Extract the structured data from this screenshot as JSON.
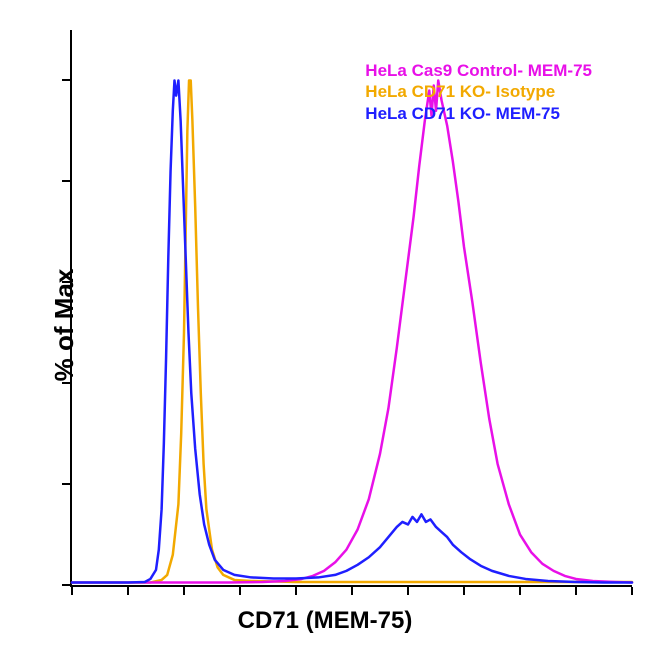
{
  "chart": {
    "type": "histogram",
    "title": "",
    "xlabel": "CD71 (MEM-75)",
    "ylabel": "% of Max",
    "label_fontsize": 24,
    "label_fontweight": "bold",
    "background_color": "#ffffff",
    "axis_color": "#000000",
    "xlim": [
      0,
      100
    ],
    "ylim": [
      0,
      110
    ],
    "x_ticks": [
      0,
      10,
      20,
      30,
      40,
      50,
      60,
      70,
      80,
      90,
      100
    ],
    "y_ticks": [
      0,
      20,
      40,
      60,
      80,
      100
    ],
    "line_width": 2.5,
    "legend": {
      "position": "top-right",
      "fontsize": 17,
      "fontweight": "bold",
      "items": [
        {
          "label": "HeLa Cas9 Control- MEM-75",
          "color": "#e810e8"
        },
        {
          "label": "HeLa CD71  KO- Isotype",
          "color": "#f2a900"
        },
        {
          "label": "HeLa CD71 KO-  MEM-75",
          "color": "#1f1fff"
        }
      ]
    },
    "series": [
      {
        "name": "HeLa CD71 KO- Isotype",
        "color": "#f2a900",
        "points": [
          [
            0,
            0.5
          ],
          [
            5,
            0.5
          ],
          [
            10,
            0.5
          ],
          [
            14,
            0.5
          ],
          [
            16,
            1
          ],
          [
            17,
            2
          ],
          [
            18,
            6
          ],
          [
            19,
            16
          ],
          [
            19.5,
            30
          ],
          [
            20,
            50
          ],
          [
            20.3,
            70
          ],
          [
            20.6,
            90
          ],
          [
            20.9,
            100
          ],
          [
            21.2,
            100
          ],
          [
            21.5,
            92
          ],
          [
            22,
            75
          ],
          [
            22.5,
            55
          ],
          [
            23,
            38
          ],
          [
            23.5,
            24
          ],
          [
            24,
            15
          ],
          [
            25,
            7
          ],
          [
            26,
            3.5
          ],
          [
            27,
            2
          ],
          [
            29,
            1
          ],
          [
            32,
            0.8
          ],
          [
            40,
            0.6
          ],
          [
            50,
            0.6
          ],
          [
            60,
            0.6
          ],
          [
            70,
            0.6
          ],
          [
            80,
            0.6
          ],
          [
            90,
            0.6
          ],
          [
            100,
            0.6
          ]
        ]
      },
      {
        "name": "HeLa Cas9 Control- MEM-75",
        "color": "#e810e8",
        "points": [
          [
            0,
            0.5
          ],
          [
            10,
            0.5
          ],
          [
            20,
            0.5
          ],
          [
            28,
            0.5
          ],
          [
            34,
            0.6
          ],
          [
            38,
            0.8
          ],
          [
            41,
            1.2
          ],
          [
            43,
            1.8
          ],
          [
            45,
            2.8
          ],
          [
            47,
            4.5
          ],
          [
            49,
            7
          ],
          [
            51,
            11
          ],
          [
            53,
            17
          ],
          [
            55,
            26
          ],
          [
            56.5,
            35
          ],
          [
            58,
            47
          ],
          [
            59.5,
            60
          ],
          [
            61,
            73
          ],
          [
            62,
            83
          ],
          [
            63,
            92
          ],
          [
            63.8,
            98
          ],
          [
            64.2,
            93
          ],
          [
            64.6,
            99
          ],
          [
            65,
            94
          ],
          [
            65.4,
            100
          ],
          [
            66,
            96
          ],
          [
            67,
            91
          ],
          [
            68,
            84
          ],
          [
            69,
            76
          ],
          [
            70,
            67
          ],
          [
            71.5,
            56
          ],
          [
            73,
            44
          ],
          [
            74.5,
            33
          ],
          [
            76,
            24
          ],
          [
            78,
            16
          ],
          [
            80,
            10
          ],
          [
            82,
            6.5
          ],
          [
            84,
            4.2
          ],
          [
            86,
            2.8
          ],
          [
            88,
            1.8
          ],
          [
            90,
            1.2
          ],
          [
            93,
            0.8
          ],
          [
            97,
            0.6
          ],
          [
            100,
            0.5
          ]
        ]
      },
      {
        "name": "HeLa CD71 KO- MEM-75",
        "color": "#1f1fff",
        "points": [
          [
            0,
            0.5
          ],
          [
            5,
            0.5
          ],
          [
            10,
            0.5
          ],
          [
            13,
            0.6
          ],
          [
            14,
            1.2
          ],
          [
            15,
            3
          ],
          [
            15.5,
            7
          ],
          [
            16,
            15
          ],
          [
            16.4,
            28
          ],
          [
            16.8,
            45
          ],
          [
            17.2,
            65
          ],
          [
            17.6,
            82
          ],
          [
            18,
            94
          ],
          [
            18.3,
            100
          ],
          [
            18.6,
            97
          ],
          [
            19,
            100
          ],
          [
            19.4,
            92
          ],
          [
            19.8,
            80
          ],
          [
            20.3,
            65
          ],
          [
            20.8,
            50
          ],
          [
            21.3,
            38
          ],
          [
            22,
            27
          ],
          [
            22.8,
            18
          ],
          [
            23.6,
            12
          ],
          [
            24.5,
            8
          ],
          [
            25.5,
            5
          ],
          [
            27,
            3
          ],
          [
            29,
            2
          ],
          [
            32,
            1.5
          ],
          [
            36,
            1.3
          ],
          [
            40,
            1.3
          ],
          [
            44,
            1.5
          ],
          [
            47,
            2
          ],
          [
            49,
            2.8
          ],
          [
            51,
            4
          ],
          [
            53,
            5.5
          ],
          [
            55,
            7.5
          ],
          [
            56.5,
            9.5
          ],
          [
            58,
            11.5
          ],
          [
            59,
            12.5
          ],
          [
            60,
            12
          ],
          [
            60.8,
            13.5
          ],
          [
            61.6,
            12.5
          ],
          [
            62.4,
            14
          ],
          [
            63.2,
            12.5
          ],
          [
            64,
            13
          ],
          [
            65,
            11.5
          ],
          [
            66,
            10.5
          ],
          [
            67,
            9.5
          ],
          [
            68,
            8
          ],
          [
            69.5,
            6.5
          ],
          [
            71,
            5.2
          ],
          [
            73,
            3.8
          ],
          [
            75,
            2.8
          ],
          [
            78,
            1.8
          ],
          [
            81,
            1.2
          ],
          [
            85,
            0.8
          ],
          [
            90,
            0.6
          ],
          [
            95,
            0.5
          ],
          [
            100,
            0.5
          ]
        ]
      }
    ]
  }
}
